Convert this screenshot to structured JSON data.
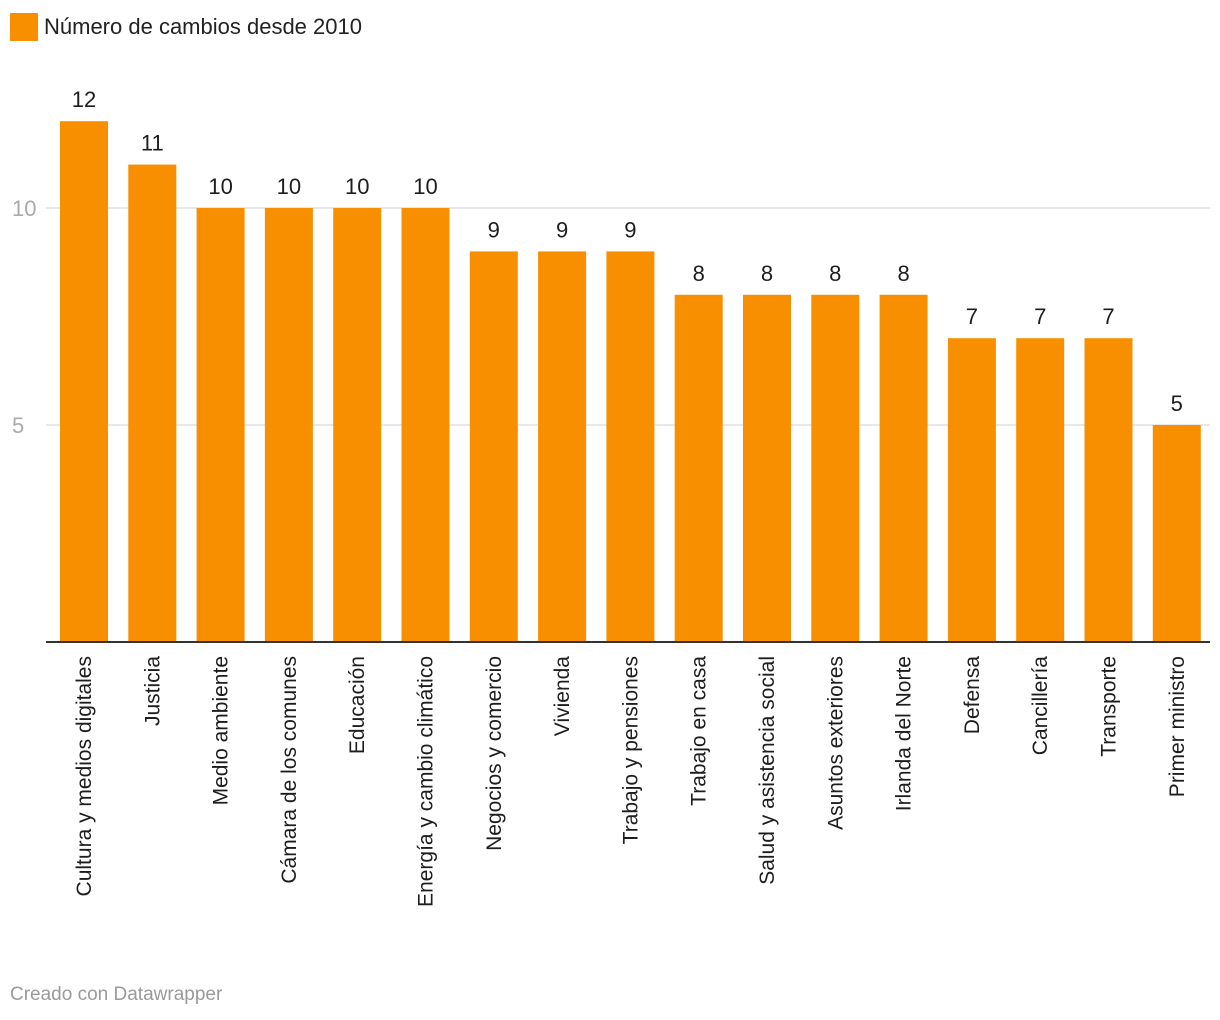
{
  "chart_data": {
    "type": "bar",
    "legend": {
      "label": "Número de cambios desde 2010",
      "color": "#F78F00"
    },
    "categories": [
      "Cultura y medios digitales",
      "Justicia",
      "Medio ambiente",
      "Cámara de los comunes",
      "Educación",
      "Energía y cambio climático",
      "Negocios y comercio",
      "Vivienda",
      "Trabajo y pensiones",
      "Trabajo en casa",
      "Salud y asistencia social",
      "Asuntos exteriores",
      "Irlanda del Norte",
      "Defensa",
      "Cancillería",
      "Transporte",
      "Primer ministro"
    ],
    "values": [
      12,
      11,
      10,
      10,
      10,
      10,
      9,
      9,
      9,
      8,
      8,
      8,
      8,
      7,
      7,
      7,
      5
    ],
    "y_ticks": [
      5,
      10
    ],
    "ylim": [
      0,
      12
    ],
    "grid": true,
    "bar_color": "#F78F00",
    "grid_color": "#e1e1e1",
    "tick_label_color": "#aaaaaa"
  },
  "footer": {
    "credit": "Creado con Datawrapper"
  }
}
